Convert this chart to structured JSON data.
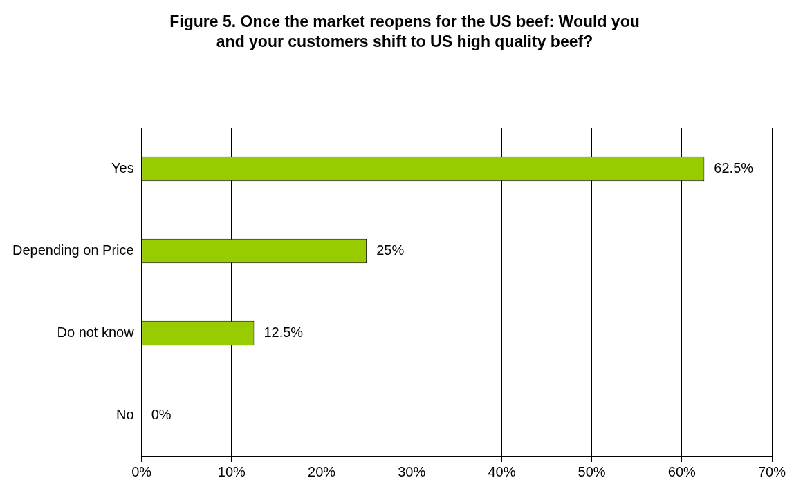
{
  "chart_data": {
    "type": "bar",
    "orientation": "horizontal",
    "title": "Figure 5. Once the market reopens for the US beef: Would you and your customers shift to US high quality beef?",
    "categories": [
      "Yes",
      "Depending on Price",
      "Do not know",
      "No"
    ],
    "values": [
      62.5,
      25,
      12.5,
      0
    ],
    "value_labels": [
      "62.5%",
      "25%",
      "12.5%",
      "0%"
    ],
    "color": "#99cc00",
    "xlim": [
      0,
      70
    ],
    "xticks": [
      {
        "value": 0,
        "label": "0%"
      },
      {
        "value": 10,
        "label": "10%"
      },
      {
        "value": 20,
        "label": "20%"
      },
      {
        "value": 30,
        "label": "30%"
      },
      {
        "value": 40,
        "label": "40%"
      },
      {
        "value": 50,
        "label": "50%"
      },
      {
        "value": 60,
        "label": "60%"
      },
      {
        "value": 70,
        "label": "70%"
      }
    ],
    "grid": "x",
    "legend": false
  }
}
